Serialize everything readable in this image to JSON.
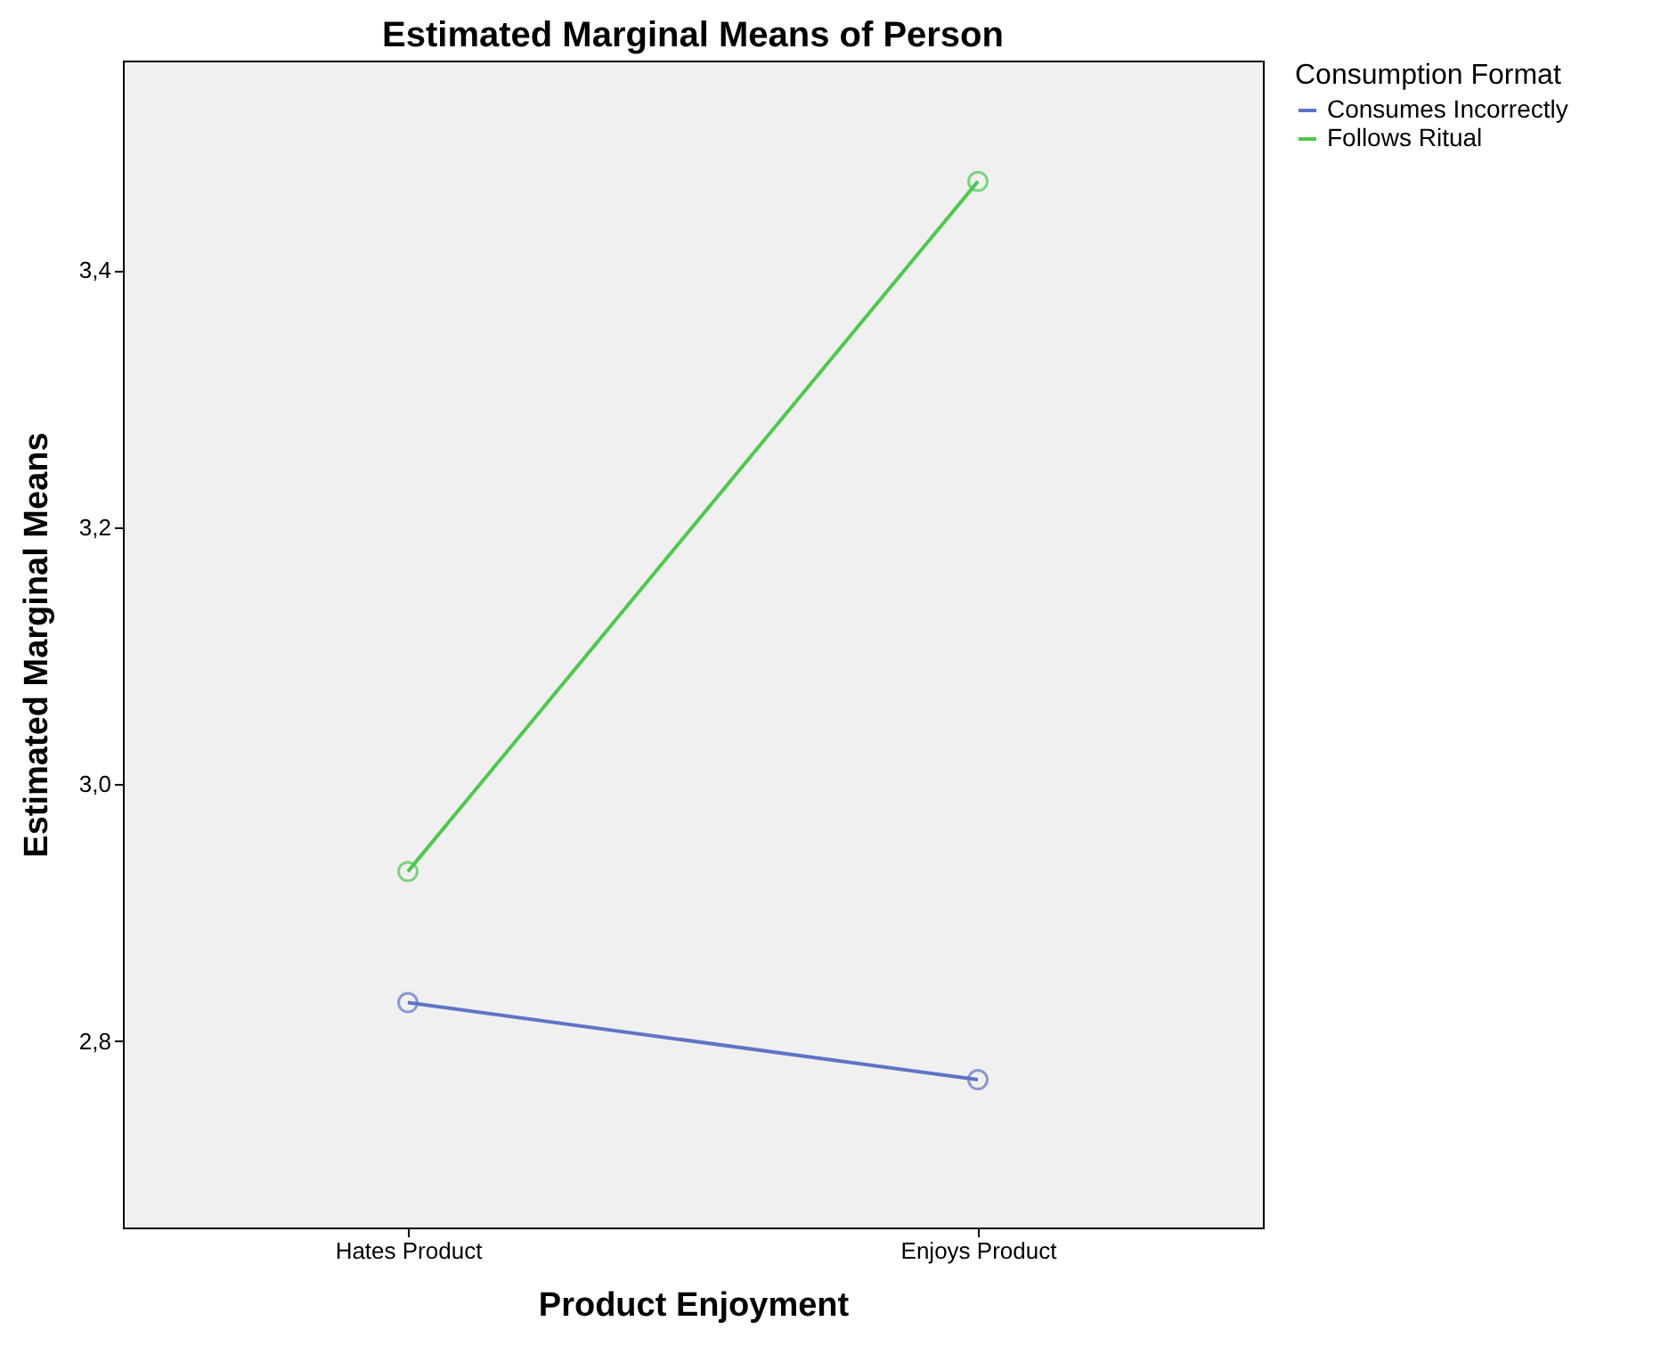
{
  "chart_data": {
    "type": "line",
    "title": "Estimated Marginal Means of Person",
    "xlabel": "Product Enjoyment",
    "ylabel": "Estimated Marginal Means",
    "legend_title": "Consumption Format",
    "categories": [
      "Hates Product",
      "Enjoys Product"
    ],
    "series": [
      {
        "name": "Consumes Incorrectly",
        "color": "#5f74c6",
        "values": [
          2.83,
          2.77
        ]
      },
      {
        "name": "Follows Ritual",
        "color": "#4cc94c",
        "values": [
          2.932,
          3.469
        ]
      }
    ],
    "ylim": [
      2.655,
      3.563
    ],
    "yticks": [
      {
        "value": 2.8,
        "label": "2,8"
      },
      {
        "value": 3.0,
        "label": "3,0"
      },
      {
        "value": 3.2,
        "label": "3,2"
      },
      {
        "value": 3.4,
        "label": "3,4"
      }
    ],
    "marker": "circle",
    "line_style": "solid",
    "grid": false,
    "legend": "top right"
  }
}
